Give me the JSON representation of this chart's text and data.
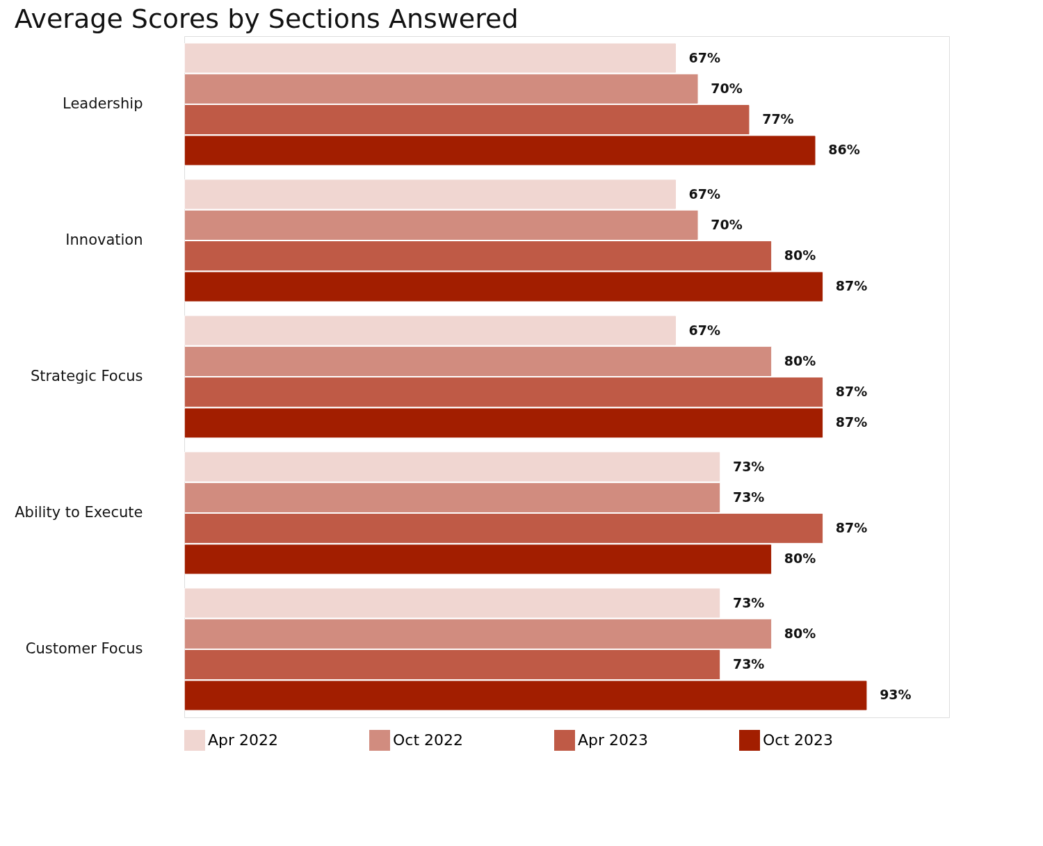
{
  "chart_data": {
    "type": "bar",
    "orientation": "horizontal",
    "title": "Average Scores by Sections Answered",
    "categories": [
      "Leadership",
      "Innovation",
      "Strategic Focus",
      "Ability to Execute",
      "Customer Focus"
    ],
    "series": [
      {
        "name": "Apr 2022",
        "color": "#f0d6d1",
        "values": [
          67,
          67,
          67,
          73,
          73
        ],
        "value_labels": [
          "67%",
          "67%",
          "67%",
          "73%",
          "73%"
        ]
      },
      {
        "name": "Oct 2022",
        "color": "#d18c7f",
        "values": [
          70,
          70,
          80,
          73,
          80
        ],
        "value_labels": [
          "70%",
          "70%",
          "80%",
          "73%",
          "80%"
        ]
      },
      {
        "name": "Apr 2023",
        "color": "#bf5a46",
        "values": [
          77,
          80,
          87,
          87,
          73
        ],
        "value_labels": [
          "77%",
          "80%",
          "87%",
          "87%",
          "73%"
        ]
      },
      {
        "name": "Oct 2023",
        "color": "#a21e00",
        "values": [
          86,
          87,
          87,
          80,
          93
        ],
        "value_labels": [
          "86%",
          "87%",
          "87%",
          "80%",
          "93%"
        ]
      }
    ],
    "legend": "bottom",
    "tick_labels": "y"
  }
}
